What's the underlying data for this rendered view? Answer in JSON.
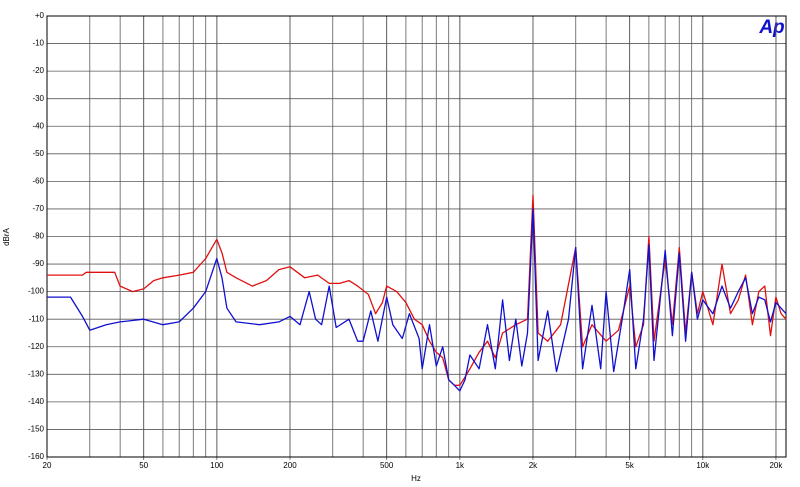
{
  "chart_data": {
    "type": "line",
    "x_label": "Hz",
    "y_label": "dBrA",
    "logo": "Ap",
    "xscale": "log",
    "minor_grid": true,
    "grid": true,
    "xlim": [
      20,
      22000
    ],
    "ylim": [
      -160,
      0
    ],
    "xticks": [
      20,
      50,
      100,
      200,
      500,
      {
        "value": 1000,
        "label": "1k"
      },
      {
        "value": 2000,
        "label": "2k"
      },
      {
        "value": 5000,
        "label": "5k"
      },
      {
        "value": 10000,
        "label": "10k"
      },
      {
        "value": 20000,
        "label": "20k"
      }
    ],
    "yticks": [
      {
        "value": 0,
        "label": "+0"
      },
      -10,
      -20,
      -30,
      -40,
      -50,
      -60,
      -70,
      -80,
      -90,
      -100,
      -110,
      -120,
      -130,
      -140,
      -150,
      -160
    ],
    "series": [
      {
        "color": "#e01010",
        "x": [
          20,
          28,
          29,
          38,
          40,
          45,
          50,
          55,
          60,
          70,
          80,
          90,
          100,
          105,
          110,
          120,
          140,
          160,
          180,
          200,
          230,
          260,
          290,
          320,
          350,
          380,
          420,
          450,
          480,
          500,
          550,
          600,
          650,
          700,
          750,
          800,
          850,
          900,
          950,
          1000,
          1050,
          1100,
          1200,
          1300,
          1400,
          1500,
          1700,
          1900,
          2000,
          2100,
          2300,
          2600,
          3000,
          3200,
          3500,
          4000,
          4500,
          5000,
          5300,
          5700,
          6000,
          6300,
          7000,
          7500,
          8000,
          8500,
          9000,
          9500,
          10000,
          11000,
          12000,
          13000,
          14000,
          15000,
          16000,
          17000,
          18000,
          19000,
          20000,
          21000,
          22000
        ],
        "values": [
          -94,
          -94,
          -93,
          -93,
          -98,
          -100,
          -99,
          -96,
          -95,
          -94,
          -93,
          -88,
          -81,
          -86,
          -93,
          -95,
          -98,
          -96,
          -92,
          -91,
          -95,
          -94,
          -97,
          -97,
          -96,
          -98,
          -101,
          -108,
          -104,
          -98,
          -100,
          -104,
          -110,
          -112,
          -118,
          -122,
          -124,
          -132,
          -134,
          -134,
          -131,
          -128,
          -122,
          -118,
          -124,
          -115,
          -112,
          -110,
          -65,
          -115,
          -118,
          -112,
          -84,
          -120,
          -112,
          -118,
          -114,
          -98,
          -120,
          -112,
          -80,
          -118,
          -88,
          -112,
          -84,
          -115,
          -93,
          -108,
          -100,
          -112,
          -90,
          -108,
          -103,
          -94,
          -112,
          -100,
          -98,
          -116,
          -102,
          -108,
          -110
        ]
      },
      {
        "color": "#1010d0",
        "x": [
          20,
          25,
          28,
          30,
          35,
          40,
          50,
          60,
          70,
          80,
          90,
          100,
          105,
          110,
          120,
          150,
          180,
          200,
          220,
          240,
          255,
          270,
          290,
          310,
          350,
          380,
          400,
          430,
          460,
          500,
          530,
          580,
          620,
          680,
          700,
          750,
          800,
          850,
          900,
          950,
          1000,
          1050,
          1100,
          1200,
          1300,
          1400,
          1500,
          1600,
          1700,
          1800,
          1900,
          2000,
          2100,
          2300,
          2500,
          2800,
          3000,
          3200,
          3500,
          3800,
          4000,
          4300,
          4700,
          5000,
          5300,
          5700,
          6000,
          6300,
          7000,
          7500,
          8000,
          8500,
          9000,
          9500,
          10000,
          11000,
          12000,
          13000,
          14000,
          15000,
          16000,
          17000,
          18000,
          19000,
          20000,
          21000,
          22000
        ],
        "values": [
          -102,
          -102,
          -109,
          -114,
          -112,
          -111,
          -110,
          -112,
          -111,
          -106,
          -100,
          -88,
          -95,
          -106,
          -111,
          -112,
          -111,
          -109,
          -112,
          -100,
          -110,
          -112,
          -98,
          -113,
          -110,
          -118,
          -118,
          -107,
          -118,
          -102,
          -112,
          -117,
          -108,
          -117,
          -128,
          -112,
          -127,
          -120,
          -132,
          -134,
          -136,
          -132,
          -123,
          -128,
          -112,
          -128,
          -103,
          -125,
          -110,
          -127,
          -115,
          -70,
          -125,
          -107,
          -129,
          -110,
          -84,
          -128,
          -105,
          -128,
          -100,
          -129,
          -108,
          -92,
          -128,
          -110,
          -83,
          -125,
          -85,
          -116,
          -86,
          -118,
          -93,
          -110,
          -103,
          -108,
          -98,
          -106,
          -100,
          -95,
          -108,
          -102,
          -103,
          -111,
          -104,
          -106,
          -108
        ]
      }
    ]
  }
}
